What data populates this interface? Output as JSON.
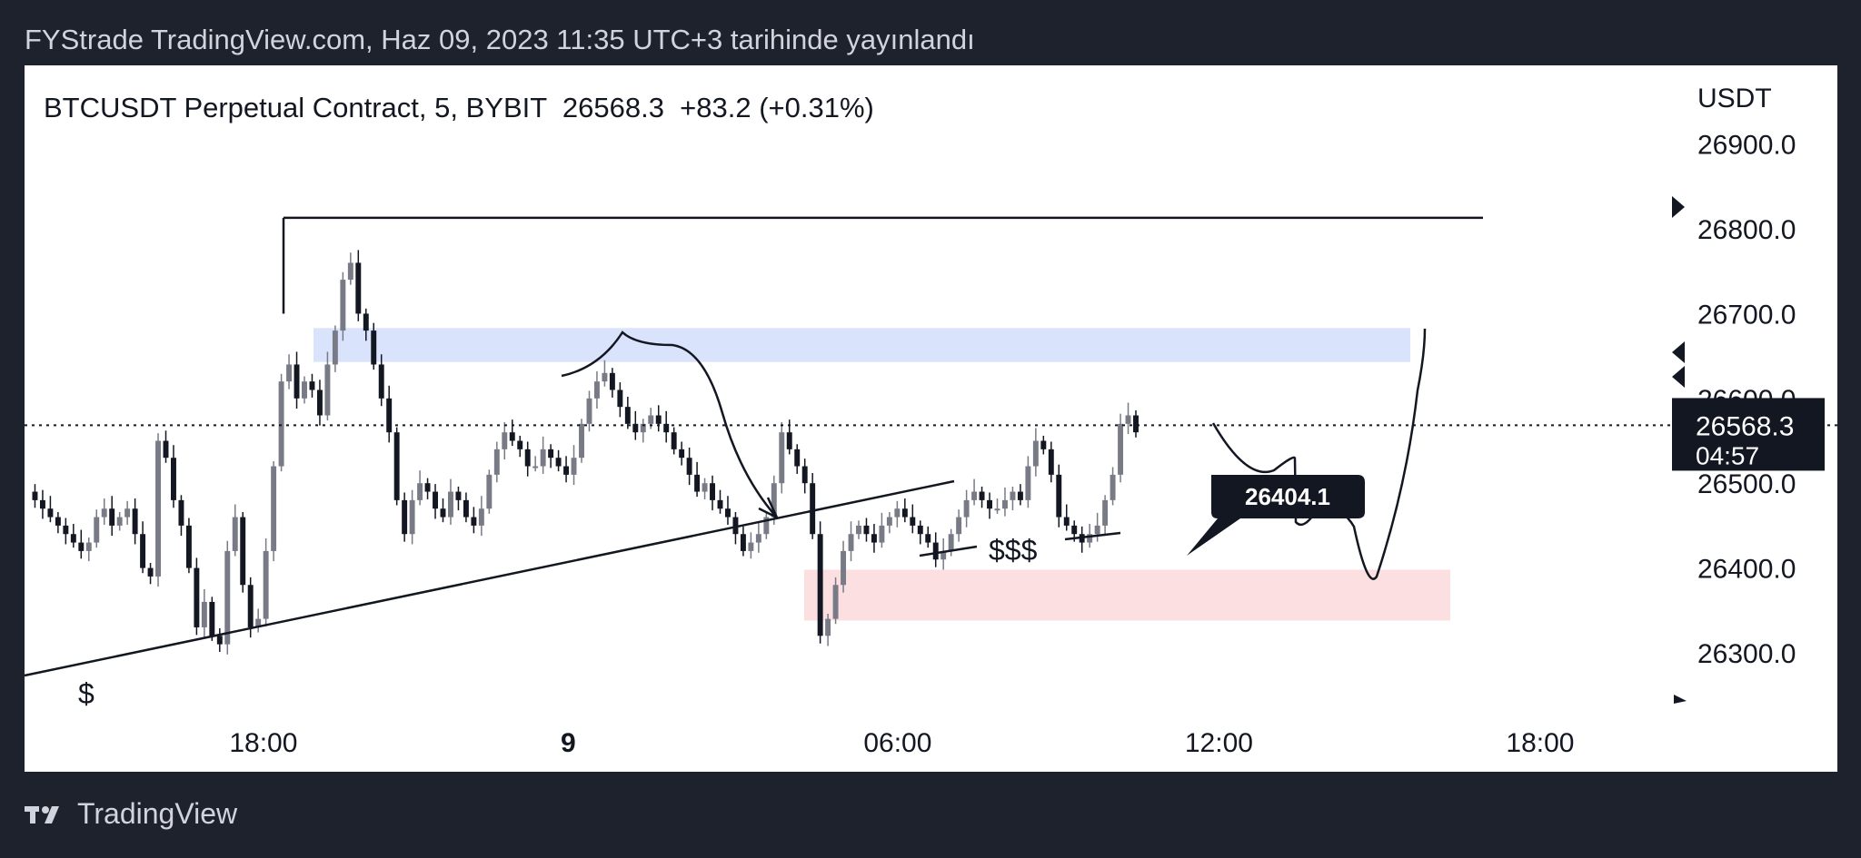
{
  "header": {
    "published_line": "FYStrade TradingView.com, Haz 09, 2023 11:35 UTC+3 tarihinde yayınlandı"
  },
  "symbol": {
    "line": "BTCUSDT Perpetual Contract, 5, BYBIT",
    "last_price": "26568.3",
    "change": "+83.2 (+0.31%)"
  },
  "footer": {
    "brand": "TradingView",
    "logo_icon": "tradingview-logo-icon"
  },
  "chart_data": {
    "type": "candlestick",
    "currency_label": "USDT",
    "y_ticks": [
      "26900.0",
      "26800.0",
      "26700.0",
      "26600.0",
      "26500.0",
      "26400.0",
      "26300.0"
    ],
    "y_tick_values": [
      26900,
      26800,
      26700,
      26600,
      26500,
      26400,
      26300
    ],
    "ylim": [
      26240,
      26920
    ],
    "x_ticks": [
      {
        "label": "18:00",
        "bold": false
      },
      {
        "label": "9",
        "bold": true
      },
      {
        "label": "06:00",
        "bold": false
      },
      {
        "label": "12:00",
        "bold": false
      },
      {
        "label": "18:00",
        "bold": false
      }
    ],
    "x_tick_positions": [
      0.145,
      0.33,
      0.53,
      0.725,
      0.92
    ],
    "last_price_label": {
      "price": "26568.3",
      "countdown": "04:57",
      "value": 26568.3
    },
    "callout": {
      "text": "26404.1",
      "value": 26404.1
    },
    "annotations": [
      "$",
      "$$$"
    ],
    "zones": [
      {
        "name": "supply-zone",
        "color": "#d9e3fb",
        "from": 26643,
        "to": 26683
      },
      {
        "name": "demand-zone",
        "color": "#fcdfe1",
        "from": 26338,
        "to": 26398
      }
    ],
    "resistance_level": 26813,
    "price_path": [
      26490,
      26480,
      26470,
      26460,
      26450,
      26440,
      26430,
      26420,
      26430,
      26460,
      26470,
      26450,
      26460,
      26470,
      26440,
      26400,
      26390,
      26550,
      26530,
      26480,
      26450,
      26400,
      26330,
      26360,
      26320,
      26310,
      26420,
      26460,
      26380,
      26330,
      26340,
      26420,
      26520,
      26620,
      26640,
      26600,
      26620,
      26610,
      26580,
      26640,
      26680,
      26740,
      26760,
      26700,
      26680,
      26640,
      26600,
      26560,
      26480,
      26440,
      26480,
      26500,
      26490,
      26470,
      26460,
      26490,
      26480,
      26460,
      26450,
      26470,
      26510,
      26540,
      26560,
      26550,
      26540,
      26520,
      26520,
      26540,
      26530,
      26520,
      26510,
      26530,
      26570,
      26600,
      26620,
      26630,
      26610,
      26590,
      26570,
      26560,
      26570,
      26580,
      26570,
      26560,
      26540,
      26530,
      26510,
      26490,
      26500,
      26480,
      26470,
      26460,
      26440,
      26420,
      26430,
      26440,
      26460,
      26500,
      26560,
      26540,
      26520,
      26500,
      26440,
      26320,
      26340,
      26380,
      26420,
      26440,
      26450,
      26440,
      26430,
      26450,
      26460,
      26470,
      26460,
      26450,
      26440,
      26430,
      26410,
      26420,
      26440,
      26460,
      26480,
      26490,
      26480,
      26470,
      26470,
      26480,
      26490,
      26480,
      26520,
      26550,
      26540,
      26510,
      26460,
      26450,
      26440,
      26430,
      26440,
      26450,
      26480,
      26510,
      26570,
      26580,
      26560
    ]
  }
}
